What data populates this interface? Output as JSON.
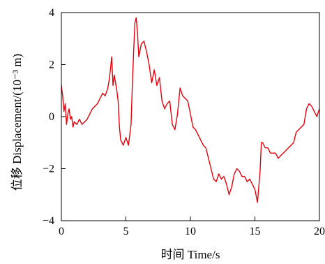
{
  "chart_data": {
    "type": "line",
    "title": "",
    "xlabel": "时间 Time/s",
    "ylabel": "位移 Displacement/(10⁻³ m)",
    "xlim": [
      0,
      20
    ],
    "ylim": [
      -4,
      4
    ],
    "x_ticks": [
      "0",
      "5",
      "10",
      "15",
      "20"
    ],
    "y_ticks": [
      "4",
      "2",
      "0",
      "−2",
      "−4"
    ],
    "grid": false,
    "legend": "none",
    "series": [
      {
        "color": "#e8000b",
        "x": [
          0,
          0.1,
          0.2,
          0.3,
          0.4,
          0.5,
          0.6,
          0.7,
          0.8,
          0.9,
          1.0,
          1.2,
          1.4,
          1.6,
          1.8,
          2.0,
          2.2,
          2.4,
          2.6,
          2.8,
          3.0,
          3.2,
          3.4,
          3.6,
          3.7,
          3.8,
          3.9,
          4.0,
          4.1,
          4.2,
          4.3,
          4.4,
          4.5,
          4.6,
          4.8,
          5.0,
          5.2,
          5.4,
          5.5,
          5.6,
          5.7,
          5.8,
          5.9,
          6.0,
          6.2,
          6.4,
          6.6,
          6.8,
          7.0,
          7.2,
          7.4,
          7.6,
          7.8,
          8.0,
          8.2,
          8.4,
          8.6,
          8.8,
          9.0,
          9.2,
          9.4,
          9.6,
          9.8,
          10.0,
          10.2,
          10.4,
          10.6,
          10.8,
          11.0,
          11.2,
          11.4,
          11.6,
          11.8,
          12.0,
          12.2,
          12.4,
          12.6,
          12.8,
          13.0,
          13.2,
          13.4,
          13.6,
          13.8,
          14.0,
          14.2,
          14.4,
          14.6,
          14.8,
          15.0,
          15.2,
          15.4,
          15.5,
          15.6,
          15.8,
          16.0,
          16.2,
          16.4,
          16.6,
          16.8,
          17.0,
          17.2,
          17.4,
          17.6,
          17.8,
          18.0,
          18.2,
          18.4,
          18.6,
          18.8,
          19.0,
          19.2,
          19.4,
          19.6,
          19.8,
          20.0
        ],
        "y": [
          1.2,
          0.8,
          0.2,
          0.5,
          -0.3,
          0.1,
          0.3,
          -0.1,
          0.0,
          -0.4,
          -0.2,
          -0.3,
          -0.1,
          -0.3,
          -0.2,
          -0.1,
          0.1,
          0.3,
          0.4,
          0.5,
          0.7,
          0.9,
          0.8,
          1.1,
          1.4,
          1.8,
          2.3,
          1.2,
          1.6,
          1.3,
          1.0,
          0.6,
          -0.4,
          -0.9,
          -1.1,
          -0.8,
          -1.1,
          -0.3,
          1.2,
          2.5,
          3.6,
          3.8,
          3.2,
          2.3,
          2.8,
          2.9,
          2.5,
          2.0,
          1.3,
          1.8,
          1.2,
          1.5,
          0.6,
          0.3,
          0.5,
          0.6,
          -0.3,
          -0.5,
          0.1,
          1.1,
          0.8,
          0.7,
          0.6,
          0.1,
          -0.4,
          -0.5,
          -0.7,
          -0.9,
          -1.1,
          -1.2,
          -1.6,
          -2.0,
          -2.4,
          -2.5,
          -2.2,
          -2.4,
          -2.3,
          -2.6,
          -3.0,
          -2.7,
          -2.2,
          -2.0,
          -2.1,
          -2.3,
          -2.3,
          -2.5,
          -2.4,
          -2.6,
          -2.8,
          -3.3,
          -2.1,
          -1.0,
          -1.0,
          -1.2,
          -1.2,
          -1.4,
          -1.4,
          -1.4,
          -1.6,
          -1.5,
          -1.4,
          -1.3,
          -1.2,
          -1.1,
          -1.0,
          -0.6,
          -0.5,
          -0.4,
          -0.3,
          0.3,
          0.5,
          0.4,
          0.2,
          0.0,
          0.3
        ]
      }
    ]
  }
}
